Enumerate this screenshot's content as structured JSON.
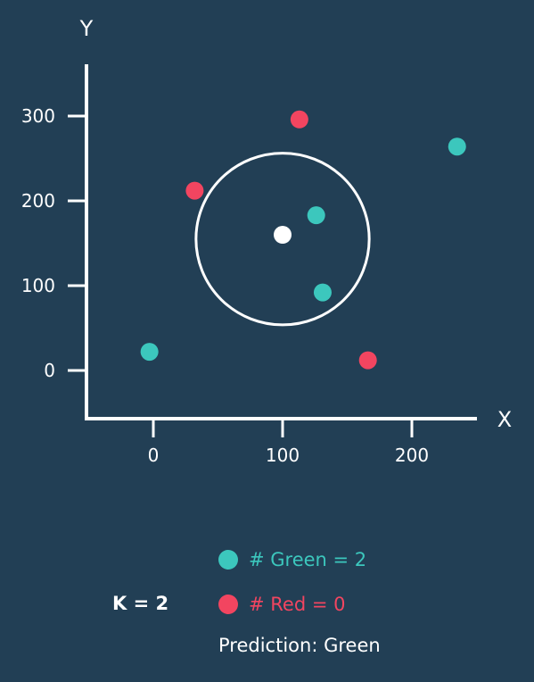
{
  "colors": {
    "background": "#223f55",
    "green": "#3cc7bd",
    "red": "#f24560",
    "query": "#ffffff",
    "axis": "#ffffff"
  },
  "chart_data": {
    "type": "scatter",
    "xlabel": "X",
    "ylabel": "Y",
    "xlim": [
      -52,
      255
    ],
    "ylim": [
      -57,
      360
    ],
    "x_ticks": [
      0,
      100,
      200
    ],
    "y_ticks": [
      0,
      100,
      200,
      300
    ],
    "series": [
      {
        "name": "Green",
        "color": "#3cc7bd",
        "points": [
          [
            -3,
            22
          ],
          [
            126,
            183
          ],
          [
            131,
            92
          ],
          [
            235,
            264
          ]
        ]
      },
      {
        "name": "Red",
        "color": "#f24560",
        "points": [
          [
            32,
            212
          ],
          [
            113,
            296
          ],
          [
            166,
            12
          ]
        ]
      }
    ],
    "query_point": [
      100,
      160
    ],
    "neighborhood_circle": {
      "center": [
        100,
        155
      ],
      "radius_x": 67
    }
  },
  "legend": {
    "green_text": "# Green = 2",
    "red_text": "# Red = 0",
    "k_text": "K = 2",
    "prediction_text": "Prediction: Green"
  }
}
